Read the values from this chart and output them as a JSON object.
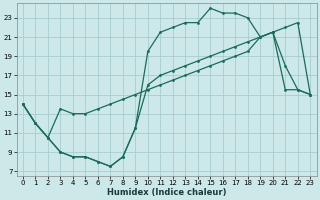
{
  "bg_color": "#cce8e8",
  "grid_color": "#a8cccc",
  "line_color": "#1a6b5a",
  "xlabel": "Humidex (Indice chaleur)",
  "xlim": [
    -0.5,
    23.5
  ],
  "ylim": [
    6.5,
    24.5
  ],
  "xticks": [
    0,
    1,
    2,
    3,
    4,
    5,
    6,
    7,
    8,
    9,
    10,
    11,
    12,
    13,
    14,
    15,
    16,
    17,
    18,
    19,
    20,
    21,
    22,
    23
  ],
  "yticks": [
    7,
    9,
    11,
    13,
    15,
    17,
    19,
    21,
    23
  ],
  "line1_x": [
    0,
    1,
    2,
    3,
    4,
    5,
    6,
    7,
    8,
    9,
    10,
    11,
    12,
    13,
    14,
    15,
    16,
    17,
    18,
    19,
    20,
    21,
    22,
    23
  ],
  "line1_y": [
    14,
    12,
    10.5,
    9,
    8.5,
    8.5,
    8.0,
    7.5,
    8.5,
    11.5,
    19.5,
    21.5,
    22,
    22.5,
    22.5,
    24,
    23.5,
    23.5,
    23,
    21,
    21.5,
    18,
    15.5,
    15
  ],
  "line2_x": [
    0,
    1,
    2,
    3,
    4,
    5,
    6,
    7,
    8,
    9,
    10,
    11,
    12,
    13,
    14,
    15,
    16,
    17,
    18,
    19,
    20,
    21,
    22,
    23
  ],
  "line2_y": [
    14,
    12,
    10.5,
    9,
    8.5,
    8.5,
    8.0,
    7.5,
    8.5,
    11.5,
    16,
    17,
    17.5,
    18,
    18.5,
    19,
    19.5,
    20,
    20.5,
    21,
    21.5,
    22,
    22.5,
    15
  ],
  "line3_x": [
    0,
    1,
    2,
    3,
    4,
    5,
    6,
    7,
    8,
    9,
    10,
    11,
    12,
    13,
    14,
    15,
    16,
    17,
    18,
    19,
    20,
    21,
    22,
    23
  ],
  "line3_y": [
    14,
    12,
    10.5,
    13.5,
    13,
    13,
    13.5,
    14,
    14.5,
    15,
    15.5,
    16,
    16.5,
    17,
    17.5,
    18,
    18.5,
    19,
    19.5,
    21,
    21.5,
    15.5,
    15.5,
    15
  ]
}
